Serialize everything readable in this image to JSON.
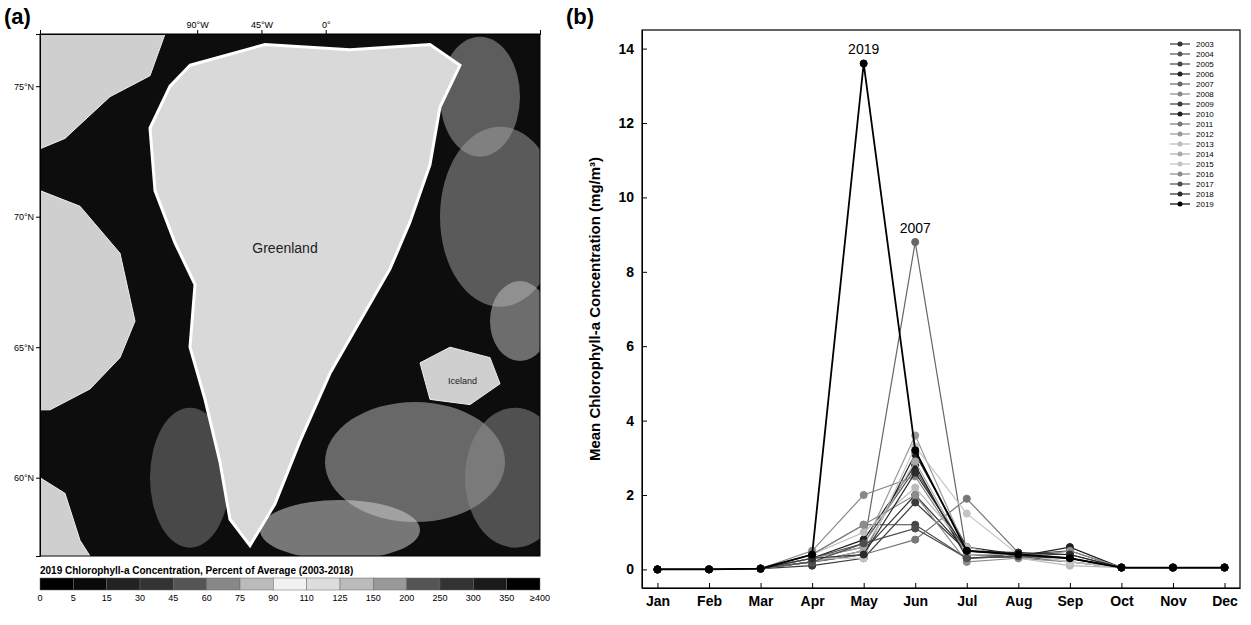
{
  "chart_data": [
    {
      "type": "map",
      "title": "(a)",
      "xlim": [
        -200,
        150
      ],
      "xticks": [
        {
          "value": -90,
          "label": "90°W"
        },
        {
          "value": -45,
          "label": "45°W"
        },
        {
          "value": 0,
          "label": "0°"
        }
      ],
      "ylim": [
        57,
        77
      ],
      "yticks": [
        {
          "value": 60,
          "label": "60°N"
        },
        {
          "value": 65,
          "label": "65°N"
        },
        {
          "value": 70,
          "label": "70°N"
        },
        {
          "value": 75,
          "label": "75°N"
        }
      ],
      "annotations": [
        "Greenland",
        "Iceland"
      ],
      "colorbar": {
        "title": "2019 Chlorophyll-a Concentration, Percent of Average (2003-2018)",
        "ticks": [
          0,
          5,
          15,
          30,
          45,
          60,
          75,
          90,
          110,
          125,
          150,
          200,
          250,
          300,
          350,
          {
            "value": 400,
            "label": "≥400"
          }
        ],
        "colors": [
          "#000000",
          "#0a0a0a",
          "#222222",
          "#333333",
          "#555555",
          "#888888",
          "#bbbbbb",
          "#f2f2f2",
          "#dddddd",
          "#bbbbbb",
          "#999999",
          "#555555",
          "#333333",
          "#1a1a1a",
          "#000000"
        ]
      }
    },
    {
      "type": "line",
      "title": "(b)",
      "y_label": "Mean Chlorophyll-a Concentration (mg/m³)",
      "categories": [
        "Jan",
        "Feb",
        "Mar",
        "Apr",
        "May",
        "Jun",
        "Jul",
        "Aug",
        "Sep",
        "Oct",
        "Nov",
        "Dec"
      ],
      "ylim": [
        -0.5,
        14.5
      ],
      "yticks": [
        0,
        2,
        4,
        6,
        8,
        10,
        12,
        14
      ],
      "legend": "upper right",
      "marker": "circle",
      "annotations": [
        {
          "text": "2019",
          "x": 4,
          "y": 13.6
        },
        {
          "text": "2007",
          "x": 5,
          "y": 8.8
        }
      ],
      "series": [
        {
          "name": "2003",
          "color": "#333333",
          "values": [
            0,
            0,
            0.02,
            0.2,
            0.5,
            2.0,
            0.5,
            0.4,
            0.3,
            0.05,
            0.05,
            0.05
          ]
        },
        {
          "name": "2004",
          "color": "#555555",
          "values": [
            0,
            0,
            0.02,
            0.3,
            0.7,
            2.7,
            0.4,
            0.35,
            0.2,
            0.05,
            0.05,
            0.05
          ]
        },
        {
          "name": "2005",
          "color": "#444444",
          "values": [
            0,
            0,
            0.02,
            0.4,
            1.2,
            1.2,
            0.3,
            0.4,
            0.5,
            0.05,
            0.05,
            0.05
          ]
        },
        {
          "name": "2006",
          "color": "#222222",
          "values": [
            0,
            0,
            0.02,
            0.2,
            0.4,
            3.1,
            0.6,
            0.4,
            0.3,
            0.05,
            0.05,
            0.05
          ]
        },
        {
          "name": "2007",
          "color": "#666666",
          "values": [
            0,
            0,
            0.02,
            0.3,
            0.6,
            8.8,
            0.4,
            0.4,
            0.3,
            0.05,
            0.05,
            0.05
          ]
        },
        {
          "name": "2008",
          "color": "#888888",
          "values": [
            0,
            0,
            0.02,
            0.5,
            2.0,
            2.5,
            0.4,
            0.3,
            0.2,
            0.05,
            0.05,
            0.05
          ]
        },
        {
          "name": "2009",
          "color": "#3a3a3a",
          "values": [
            0,
            0,
            0.02,
            0.1,
            0.3,
            1.8,
            0.5,
            0.4,
            0.4,
            0.05,
            0.05,
            0.05
          ]
        },
        {
          "name": "2010",
          "color": "#1f1f1f",
          "values": [
            0,
            0,
            0.02,
            0.3,
            0.8,
            2.8,
            0.3,
            0.35,
            0.6,
            0.05,
            0.05,
            0.05
          ]
        },
        {
          "name": "2011",
          "color": "#777777",
          "values": [
            0,
            0,
            0.02,
            0.2,
            0.4,
            0.8,
            1.9,
            0.45,
            0.3,
            0.05,
            0.05,
            0.05
          ]
        },
        {
          "name": "2012",
          "color": "#999999",
          "values": [
            0,
            0,
            0.02,
            0.3,
            0.6,
            3.6,
            0.5,
            0.4,
            0.2,
            0.05,
            0.05,
            0.05
          ]
        },
        {
          "name": "2013",
          "color": "#bbbbbb",
          "values": [
            0,
            0,
            0.02,
            0.4,
            1.0,
            2.2,
            0.6,
            0.3,
            0.1,
            0.05,
            0.05,
            0.05
          ]
        },
        {
          "name": "2014",
          "color": "#aaaaaa",
          "values": [
            0,
            0,
            0.02,
            0.2,
            0.5,
            2.9,
            0.4,
            0.4,
            0.3,
            0.05,
            0.05,
            0.05
          ]
        },
        {
          "name": "2015",
          "color": "#c4c4c4",
          "values": [
            0,
            0,
            0.02,
            0.3,
            0.3,
            3.3,
            1.5,
            0.4,
            0.2,
            0.05,
            0.05,
            0.05
          ]
        },
        {
          "name": "2016",
          "color": "#8c8c8c",
          "values": [
            0,
            0,
            0.02,
            0.4,
            1.2,
            2.0,
            0.2,
            0.3,
            0.5,
            0.05,
            0.05,
            0.05
          ]
        },
        {
          "name": "2017",
          "color": "#4d4d4d",
          "values": [
            0,
            0,
            0.02,
            0.2,
            0.7,
            1.1,
            0.3,
            0.35,
            0.3,
            0.05,
            0.05,
            0.05
          ]
        },
        {
          "name": "2018",
          "color": "#2b2b2b",
          "values": [
            0,
            0,
            0.02,
            0.3,
            0.4,
            2.6,
            0.5,
            0.45,
            0.4,
            0.05,
            0.05,
            0.05
          ]
        },
        {
          "name": "2019",
          "color": "#000000",
          "values": [
            0,
            0,
            0.02,
            0.4,
            13.6,
            3.2,
            0.5,
            0.4,
            0.3,
            0.05,
            0.05,
            0.05
          ]
        }
      ]
    }
  ]
}
